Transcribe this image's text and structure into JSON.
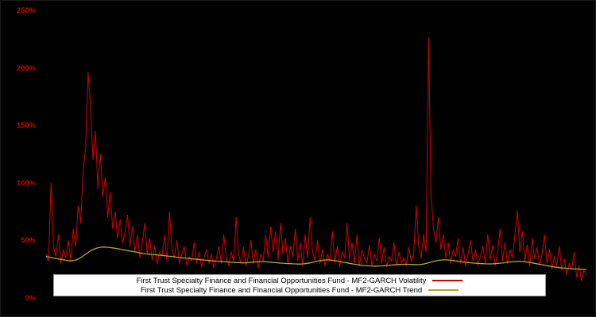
{
  "chart_data": {
    "type": "line",
    "title": "",
    "xlabel": "",
    "ylabel": "",
    "ylim": [
      0,
      250
    ],
    "y_unit": "percent",
    "grid": false,
    "background_color": "#000000",
    "axis_label_color": "#d40000",
    "yticks": [
      {
        "value": 0,
        "label": "0%"
      },
      {
        "value": 50,
        "label": "50%"
      },
      {
        "value": 100,
        "label": "100%"
      },
      {
        "value": 150,
        "label": "150%"
      },
      {
        "value": 200,
        "label": "200%"
      },
      {
        "value": 250,
        "label": "250%"
      }
    ],
    "legend": {
      "position": "bottom-center",
      "background": "#ffffff",
      "text_color": "#000000"
    },
    "series": [
      {
        "name": "First Trust Specialty Finance and Financial Opportunities Fund - MF2-GARCH Volatility",
        "color": "#d40000",
        "width": 1,
        "values": [
          38,
          32,
          100,
          45,
          36,
          55,
          30,
          42,
          35,
          50,
          33,
          60,
          45,
          80,
          65,
          110,
          130,
          196,
          168,
          120,
          145,
          95,
          125,
          88,
          105,
          70,
          92,
          60,
          75,
          52,
          68,
          48,
          58,
          72,
          45,
          62,
          40,
          55,
          35,
          48,
          65,
          38,
          52,
          33,
          45,
          30,
          40,
          36,
          55,
          32,
          75,
          42,
          35,
          50,
          30,
          38,
          45,
          28,
          36,
          32,
          48,
          30,
          40,
          27,
          35,
          42,
          30,
          38,
          26,
          34,
          45,
          30,
          55,
          35,
          28,
          40,
          32,
          70,
          38,
          30,
          44,
          28,
          36,
          50,
          30,
          42,
          26,
          38,
          32,
          55,
          35,
          62,
          40,
          58,
          33,
          65,
          38,
          52,
          30,
          45,
          36,
          60,
          32,
          48,
          28,
          55,
          35,
          70,
          40,
          33,
          50,
          30,
          42,
          28,
          38,
          32,
          58,
          30,
          45,
          27,
          40,
          35,
          65,
          33,
          48,
          30,
          55,
          28,
          42,
          35,
          30,
          46,
          28,
          38,
          32,
          52,
          30,
          44,
          27,
          36,
          32,
          48,
          28,
          40,
          30,
          35,
          28,
          44,
          32,
          38,
          80,
          45,
          35,
          55,
          40,
          226,
          90,
          60,
          48,
          70,
          42,
          55,
          35,
          48,
          30,
          42,
          36,
          52,
          30,
          44,
          28,
          38,
          50,
          32,
          42,
          28,
          36,
          45,
          30,
          55,
          33,
          46,
          28,
          40,
          60,
          32,
          48,
          30,
          42,
          35,
          55,
          76,
          40,
          58,
          32,
          46,
          28,
          52,
          34,
          44,
          28,
          38,
          55,
          30,
          42,
          25,
          36,
          28,
          45,
          24,
          34,
          20,
          30,
          25,
          40,
          18,
          28,
          15,
          24,
          20
        ]
      },
      {
        "name": "First Trust Specialty Finance and Financial Opportunities Fund - MF2-GARCH Trend",
        "color": "#b8a626",
        "width": 1.3,
        "values": [
          36,
          35.6,
          35.2,
          34.8,
          34.4,
          34,
          33.6,
          33.2,
          32.8,
          32.5,
          32.2,
          32.5,
          33,
          33.8,
          35,
          36.5,
          38,
          39.5,
          41,
          42,
          43,
          43.6,
          44,
          44.2,
          44.2,
          44,
          43.8,
          43.5,
          43.2,
          42.8,
          42.4,
          42,
          41.6,
          41.2,
          40.8,
          40.4,
          40,
          39.6,
          39.2,
          38.8,
          38.5,
          38.2,
          38,
          37.8,
          37.6,
          37.4,
          37.2,
          37,
          36.8,
          36.5,
          36.2,
          36,
          35.8,
          35.5,
          35.2,
          35,
          34.8,
          34.5,
          34.3,
          34,
          33.8,
          33.6,
          33.4,
          33.2,
          33,
          32.8,
          32.6,
          32.4,
          32.2,
          32,
          31.9,
          31.8,
          31.6,
          31.4,
          31.2,
          31,
          30.9,
          30.8,
          30.7,
          30.6,
          30.5,
          30.6,
          30.8,
          31,
          31.2,
          31.4,
          31.5,
          31.6,
          31.6,
          31.5,
          31.3,
          31.1,
          30.9,
          30.7,
          30.5,
          30.3,
          30.2,
          30,
          29.9,
          29.8,
          29.7,
          29.6,
          29.5,
          29.5,
          29.6,
          29.8,
          30.1,
          30.5,
          31,
          31.5,
          32,
          32.5,
          32.8,
          33,
          33.1,
          33,
          32.8,
          32.5,
          32.1,
          31.7,
          31.3,
          30.9,
          30.5,
          30.1,
          29.7,
          29.3,
          29,
          28.7,
          28.4,
          28.2,
          28,
          27.9,
          27.8,
          27.7,
          27.7,
          27.8,
          27.9,
          28,
          28.2,
          28.4,
          28.6,
          28.8,
          29,
          29.1,
          29.2,
          29.3,
          29.3,
          29.3,
          29.2,
          29.1,
          29,
          29,
          29.2,
          29.5,
          30,
          30.6,
          31.2,
          31.8,
          32.3,
          32.7,
          33,
          33.1,
          33.1,
          33,
          32.8,
          32.5,
          32.2,
          31.9,
          31.6,
          31.3,
          31,
          30.8,
          30.6,
          30.4,
          30.2,
          30,
          29.9,
          29.8,
          29.7,
          29.6,
          29.6,
          29.7,
          29.8,
          30,
          30.2,
          30.4,
          30.7,
          31,
          31.3,
          31.5,
          31.7,
          31.8,
          31.8,
          31.7,
          31.5,
          31.2,
          30.9,
          30.5,
          30.1,
          29.7,
          29.3,
          28.9,
          28.5,
          28.1,
          27.7,
          27.3,
          27,
          26.7,
          26.4,
          26.2,
          26,
          25.8,
          25.6,
          25.4,
          25.3,
          25.2,
          25.1,
          25,
          24.9,
          24.8
        ]
      }
    ]
  }
}
